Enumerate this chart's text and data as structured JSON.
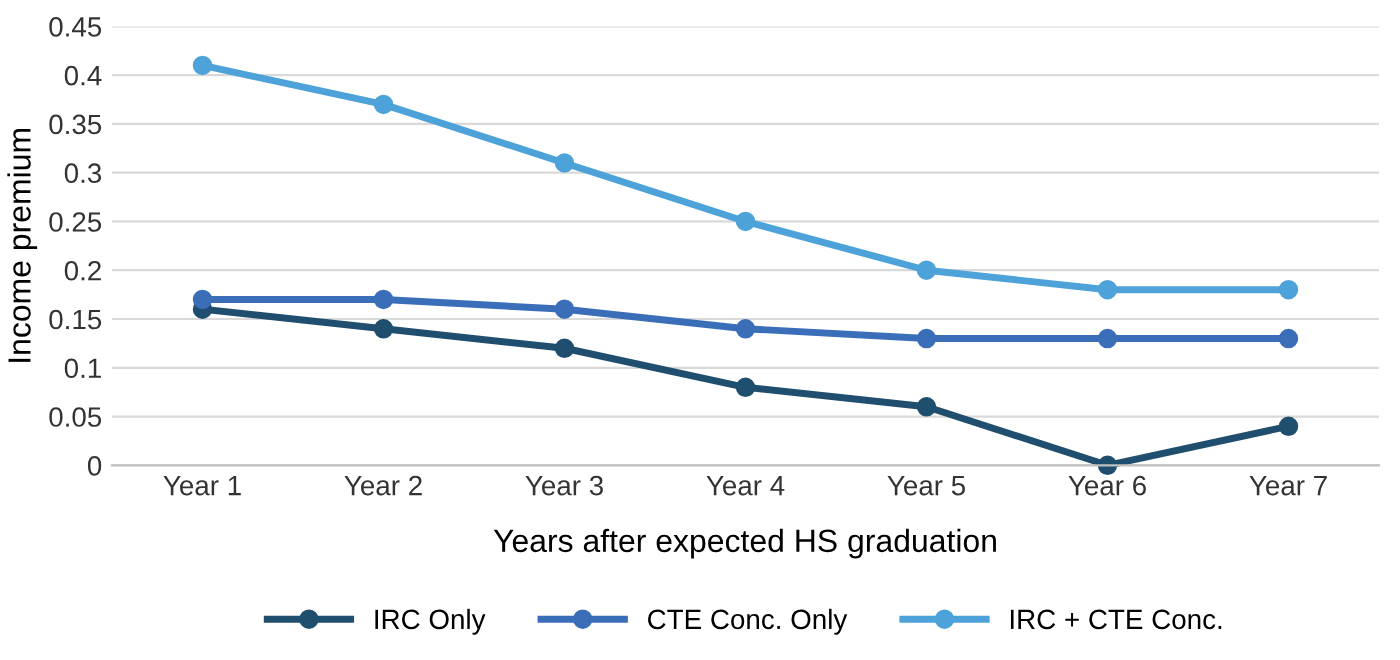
{
  "chart_data": {
    "type": "line",
    "categories": [
      "Year 1",
      "Year 2",
      "Year 3",
      "Year 4",
      "Year 5",
      "Year 6",
      "Year 7"
    ],
    "series": [
      {
        "name": "IRC Only",
        "color": "#1f4e6e",
        "values": [
          0.16,
          0.14,
          0.12,
          0.08,
          0.06,
          0,
          0.04
        ]
      },
      {
        "name": "CTE Conc. Only",
        "color": "#3a6eb8",
        "values": [
          0.17,
          0.17,
          0.16,
          0.14,
          0.13,
          0.13,
          0.13
        ]
      },
      {
        "name": "IRC + CTE Conc.",
        "color": "#4da3d9",
        "values": [
          0.41,
          0.37,
          0.31,
          0.25,
          0.2,
          0.18,
          0.18
        ]
      }
    ],
    "xlabel": "Years after expected HS graduation",
    "ylabel": "Income premium",
    "ylim": [
      0,
      0.45
    ],
    "yticks": [
      0,
      0.05,
      0.1,
      0.15,
      0.2,
      0.25,
      0.3,
      0.35,
      0.4,
      0.45
    ],
    "grid": "y",
    "legend": "bottom",
    "marker": "circle",
    "line_style": "solid"
  }
}
